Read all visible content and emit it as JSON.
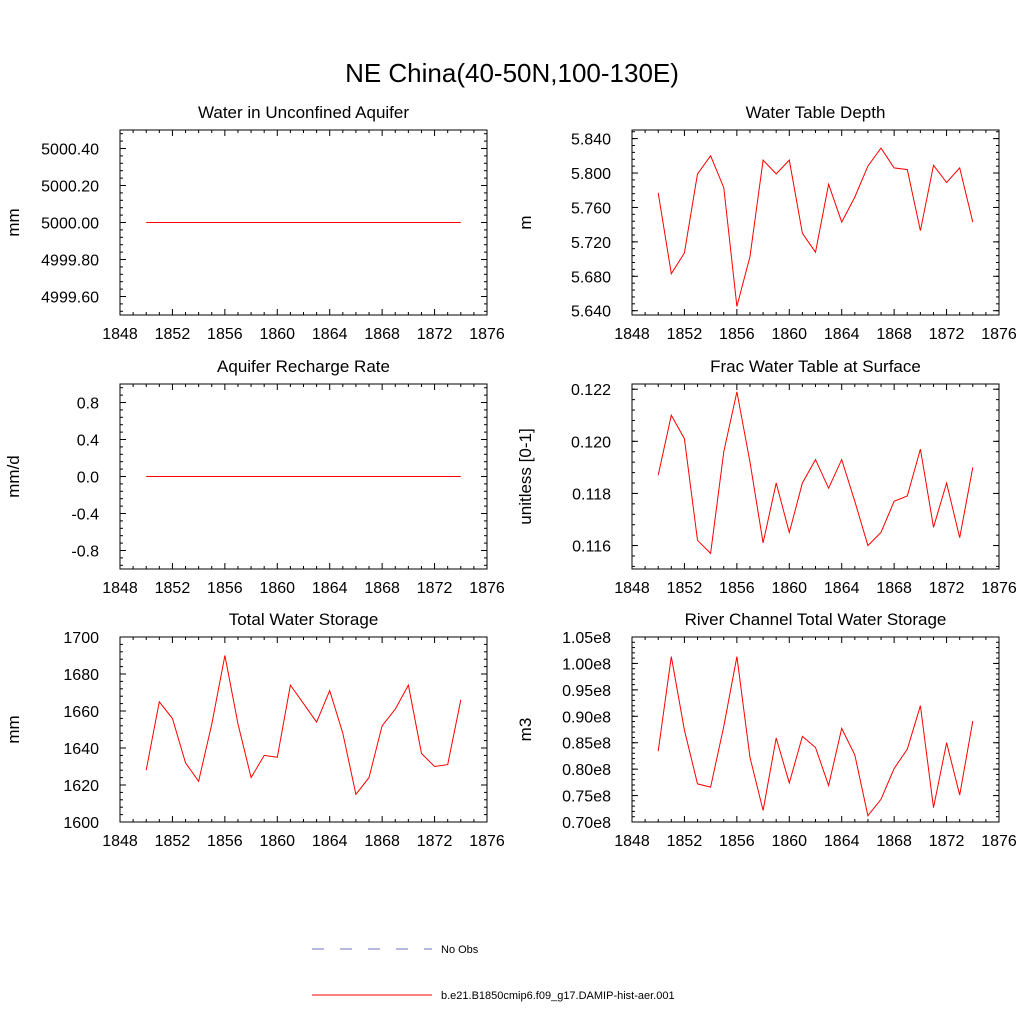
{
  "title": "NE China(40-50N,100-130E)",
  "chart_data": [
    {
      "type": "line",
      "title": "Water in Unconfined Aquifer",
      "ylabel": "mm",
      "xlim": [
        1848,
        1876
      ],
      "ylim": [
        4999.5,
        5000.5
      ],
      "xticks": [
        1848,
        1852,
        1856,
        1860,
        1864,
        1868,
        1872,
        1876
      ],
      "yticks": [
        4999.6,
        4999.8,
        5000.0,
        5000.2,
        5000.4
      ],
      "ytick_labels": [
        "4999.60",
        "4999.80",
        "5000.00",
        "5000.20",
        "5000.40"
      ],
      "x": [
        1850,
        1851,
        1852,
        1853,
        1854,
        1855,
        1856,
        1857,
        1858,
        1859,
        1860,
        1861,
        1862,
        1863,
        1864,
        1865,
        1866,
        1867,
        1868,
        1869,
        1870,
        1871,
        1872,
        1873,
        1874
      ],
      "series": [
        {
          "name": "b.e21.B1850cmip6.f09_g17.DAMIP-hist-aer.001",
          "color": "#ff0000",
          "values": [
            5000,
            5000,
            5000,
            5000,
            5000,
            5000,
            5000,
            5000,
            5000,
            5000,
            5000,
            5000,
            5000,
            5000,
            5000,
            5000,
            5000,
            5000,
            5000,
            5000,
            5000,
            5000,
            5000,
            5000,
            5000
          ]
        }
      ]
    },
    {
      "type": "line",
      "title": "Water Table Depth",
      "ylabel": "m",
      "xlim": [
        1848,
        1876
      ],
      "ylim": [
        5.635,
        5.85
      ],
      "xticks": [
        1848,
        1852,
        1856,
        1860,
        1864,
        1868,
        1872,
        1876
      ],
      "yticks": [
        5.64,
        5.68,
        5.72,
        5.76,
        5.8,
        5.84
      ],
      "ytick_labels": [
        "5.640",
        "5.680",
        "5.720",
        "5.760",
        "5.800",
        "5.840"
      ],
      "x": [
        1850,
        1851,
        1852,
        1853,
        1854,
        1855,
        1856,
        1857,
        1858,
        1859,
        1860,
        1861,
        1862,
        1863,
        1864,
        1865,
        1866,
        1867,
        1868,
        1869,
        1870,
        1871,
        1872,
        1873,
        1874
      ],
      "series": [
        {
          "name": "b.e21.B1850cmip6.f09_g17.DAMIP-hist-aer.001",
          "color": "#ff0000",
          "values": [
            5.777,
            5.683,
            5.707,
            5.799,
            5.82,
            5.783,
            5.645,
            5.703,
            5.815,
            5.799,
            5.815,
            5.73,
            5.708,
            5.787,
            5.743,
            5.772,
            5.808,
            5.829,
            5.806,
            5.804,
            5.733,
            5.809,
            5.789,
            5.806,
            5.743
          ]
        }
      ]
    },
    {
      "type": "line",
      "title": "Aquifer Recharge Rate",
      "ylabel": "mm/d",
      "xlim": [
        1848,
        1876
      ],
      "ylim": [
        -1.0,
        1.0
      ],
      "xticks": [
        1848,
        1852,
        1856,
        1860,
        1864,
        1868,
        1872,
        1876
      ],
      "yticks": [
        -0.8,
        -0.4,
        0.0,
        0.4,
        0.8
      ],
      "ytick_labels": [
        "-0.8",
        "-0.4",
        "0.0",
        "0.4",
        "0.8"
      ],
      "x": [
        1850,
        1851,
        1852,
        1853,
        1854,
        1855,
        1856,
        1857,
        1858,
        1859,
        1860,
        1861,
        1862,
        1863,
        1864,
        1865,
        1866,
        1867,
        1868,
        1869,
        1870,
        1871,
        1872,
        1873,
        1874
      ],
      "series": [
        {
          "name": "b.e21.B1850cmip6.f09_g17.DAMIP-hist-aer.001",
          "color": "#ff0000",
          "values": [
            0,
            0,
            0,
            0,
            0,
            0,
            0,
            0,
            0,
            0,
            0,
            0,
            0,
            0,
            0,
            0,
            0,
            0,
            0,
            0,
            0,
            0,
            0,
            0,
            0
          ]
        }
      ]
    },
    {
      "type": "line",
      "title": "Frac Water Table at Surface",
      "ylabel": "unitless [0-1]",
      "xlim": [
        1848,
        1876
      ],
      "ylim": [
        0.1151,
        0.1222
      ],
      "xticks": [
        1848,
        1852,
        1856,
        1860,
        1864,
        1868,
        1872,
        1876
      ],
      "yticks": [
        0.116,
        0.118,
        0.12,
        0.122
      ],
      "ytick_labels": [
        "0.116",
        "0.118",
        "0.120",
        "0.122"
      ],
      "x": [
        1850,
        1851,
        1852,
        1853,
        1854,
        1855,
        1856,
        1857,
        1858,
        1859,
        1860,
        1861,
        1862,
        1863,
        1864,
        1865,
        1866,
        1867,
        1868,
        1869,
        1870,
        1871,
        1872,
        1873,
        1874
      ],
      "series": [
        {
          "name": "b.e21.B1850cmip6.f09_g17.DAMIP-hist-aer.001",
          "color": "#ff0000",
          "values": [
            0.1187,
            0.121,
            0.1201,
            0.1162,
            0.1157,
            0.1196,
            0.1219,
            0.1192,
            0.1161,
            0.1184,
            0.1165,
            0.1184,
            0.1193,
            0.1182,
            0.1193,
            0.1177,
            0.116,
            0.1165,
            0.1177,
            0.1179,
            0.1197,
            0.1167,
            0.1184,
            0.1163,
            0.119
          ]
        }
      ]
    },
    {
      "type": "line",
      "title": "Total Water Storage",
      "ylabel": "mm",
      "xlim": [
        1848,
        1876
      ],
      "ylim": [
        1600,
        1700
      ],
      "xticks": [
        1848,
        1852,
        1856,
        1860,
        1864,
        1868,
        1872,
        1876
      ],
      "yticks": [
        1600,
        1620,
        1640,
        1660,
        1680,
        1700
      ],
      "ytick_labels": [
        "1600",
        "1620",
        "1640",
        "1660",
        "1680",
        "1700"
      ],
      "x": [
        1850,
        1851,
        1852,
        1853,
        1854,
        1855,
        1856,
        1857,
        1858,
        1859,
        1860,
        1861,
        1862,
        1863,
        1864,
        1865,
        1866,
        1867,
        1868,
        1869,
        1870,
        1871,
        1872,
        1873,
        1874
      ],
      "series": [
        {
          "name": "b.e21.B1850cmip6.f09_g17.DAMIP-hist-aer.001",
          "color": "#ff0000",
          "values": [
            1628,
            1665,
            1656,
            1632,
            1622,
            1653,
            1690,
            1653,
            1624,
            1636,
            1635,
            1674,
            1664,
            1654,
            1671,
            1648,
            1615,
            1624,
            1652,
            1661,
            1674,
            1637,
            1630,
            1631,
            1666
          ]
        }
      ]
    },
    {
      "type": "line",
      "title": "River Channel Total Water Storage",
      "ylabel": "m3",
      "xlim": [
        1848,
        1876
      ],
      "ylim": [
        0.7,
        1.05
      ],
      "xticks": [
        1848,
        1852,
        1856,
        1860,
        1864,
        1868,
        1872,
        1876
      ],
      "yticks": [
        0.7,
        0.75,
        0.8,
        0.85,
        0.9,
        0.95,
        1.0,
        1.05
      ],
      "ytick_labels": [
        "0.70e8",
        "0.75e8",
        "0.80e8",
        "0.85e8",
        "0.90e8",
        "0.95e8",
        "1.00e8",
        "1.05e8"
      ],
      "x": [
        1850,
        1851,
        1852,
        1853,
        1854,
        1855,
        1856,
        1857,
        1858,
        1859,
        1860,
        1861,
        1862,
        1863,
        1864,
        1865,
        1866,
        1867,
        1868,
        1869,
        1870,
        1871,
        1872,
        1873,
        1874
      ],
      "series": [
        {
          "name": "b.e21.B1850cmip6.f09_g17.DAMIP-hist-aer.001",
          "color": "#ff0000",
          "values": [
            0.834,
            1.013,
            0.874,
            0.772,
            0.766,
            0.881,
            1.013,
            0.822,
            0.722,
            0.859,
            0.774,
            0.862,
            0.841,
            0.769,
            0.877,
            0.827,
            0.712,
            0.743,
            0.801,
            0.838,
            0.92,
            0.727,
            0.85,
            0.751,
            0.891
          ]
        }
      ]
    }
  ],
  "legend": [
    {
      "label": "No Obs",
      "color": "#7070b8",
      "dash": "dashed"
    },
    {
      "label": "b.e21.B1850cmip6.f09_g17.DAMIP-hist-aer.001",
      "color": "#ff0000",
      "dash": "solid"
    }
  ]
}
